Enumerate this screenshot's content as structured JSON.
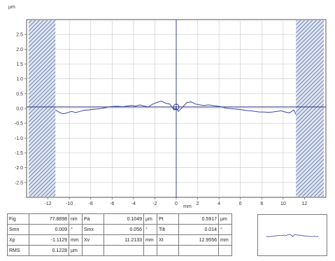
{
  "chart_data": {
    "type": "line",
    "y_unit": "µm",
    "x_unit": "mm",
    "xlim": [
      -14,
      14
    ],
    "ylim": [
      -3.0,
      3.0
    ],
    "x_ticks": [
      -12,
      -10,
      -8,
      -6,
      -4,
      -2,
      0,
      2,
      4,
      6,
      8,
      10,
      12
    ],
    "y_ticks": [
      2.5,
      2.0,
      1.5,
      1.0,
      0.5,
      0.0,
      -0.5,
      -1.0,
      -1.5,
      -2.0,
      -2.5
    ],
    "y_tick_labels": [
      "2.5",
      "2.0",
      "1.5",
      "1.0",
      "0.5",
      "0.0",
      "-0.5",
      "-1.0",
      "-1.5",
      "-2.0",
      "-2.5"
    ],
    "grid": true,
    "excluded_regions": [
      [
        -13.8,
        -11.3
      ],
      [
        11.2,
        13.8
      ]
    ],
    "crosshair": {
      "x": 0,
      "y": 0.05
    },
    "series": [
      {
        "color": "#3a46a8",
        "x": [
          -11.3,
          -11.0,
          -10.6,
          -10.2,
          -9.8,
          -9.4,
          -9.0,
          -8.6,
          -8.2,
          -7.8,
          -7.4,
          -7.0,
          -6.6,
          -6.2,
          -5.8,
          -5.4,
          -5.0,
          -4.6,
          -4.2,
          -3.8,
          -3.4,
          -3.0,
          -2.6,
          -2.2,
          -1.8,
          -1.4,
          -1.0,
          -0.6,
          -0.2,
          0.0,
          0.2,
          0.6,
          1.0,
          1.4,
          1.8,
          2.2,
          2.6,
          3.0,
          3.4,
          3.8,
          4.2,
          4.6,
          5.0,
          5.4,
          5.8,
          6.2,
          6.6,
          7.0,
          7.4,
          7.8,
          8.2,
          8.6,
          9.0,
          9.4,
          9.8,
          10.2,
          10.6,
          11.0,
          11.2
        ],
        "y": [
          -0.05,
          -0.12,
          -0.18,
          -0.15,
          -0.1,
          -0.14,
          -0.1,
          -0.06,
          -0.05,
          -0.03,
          -0.02,
          0.0,
          0.03,
          0.06,
          0.07,
          0.07,
          0.06,
          0.08,
          0.1,
          0.08,
          0.12,
          0.08,
          0.05,
          0.15,
          0.2,
          0.25,
          0.18,
          0.15,
          -0.05,
          0.02,
          -0.1,
          0.05,
          0.2,
          0.22,
          0.15,
          0.12,
          0.1,
          0.12,
          0.1,
          0.08,
          0.06,
          0.02,
          0.0,
          -0.02,
          -0.03,
          -0.05,
          -0.07,
          -0.08,
          -0.1,
          -0.12,
          -0.12,
          -0.13,
          -0.12,
          -0.1,
          -0.08,
          -0.12,
          -0.15,
          -0.05,
          -0.2
        ]
      }
    ]
  },
  "stats": [
    [
      {
        "label": "Fig",
        "value": "77.8898",
        "unit": "nm"
      },
      {
        "label": "Pa",
        "value": "0.1049",
        "unit": "µm"
      },
      {
        "label": "Pt",
        "value": "0.5917",
        "unit": "µm"
      }
    ],
    [
      {
        "label": "Smn",
        "value": "0.009",
        "unit": "°"
      },
      {
        "label": "Smx",
        "value": "0.056",
        "unit": "°"
      },
      {
        "label": "Tilt",
        "value": "0.014",
        "unit": "°"
      }
    ],
    [
      {
        "label": "Xp",
        "value": "-1.1129",
        "unit": "mm"
      },
      {
        "label": "Xv",
        "value": "11.2133",
        "unit": "mm"
      },
      {
        "label": "Xt",
        "value": "12.9556",
        "unit": "mm"
      }
    ],
    [
      {
        "label": "RMS",
        "value": "0.1228",
        "unit": "µm"
      },
      {
        "label": "",
        "value": "",
        "unit": ""
      },
      {
        "label": "",
        "value": "",
        "unit": ""
      }
    ]
  ]
}
